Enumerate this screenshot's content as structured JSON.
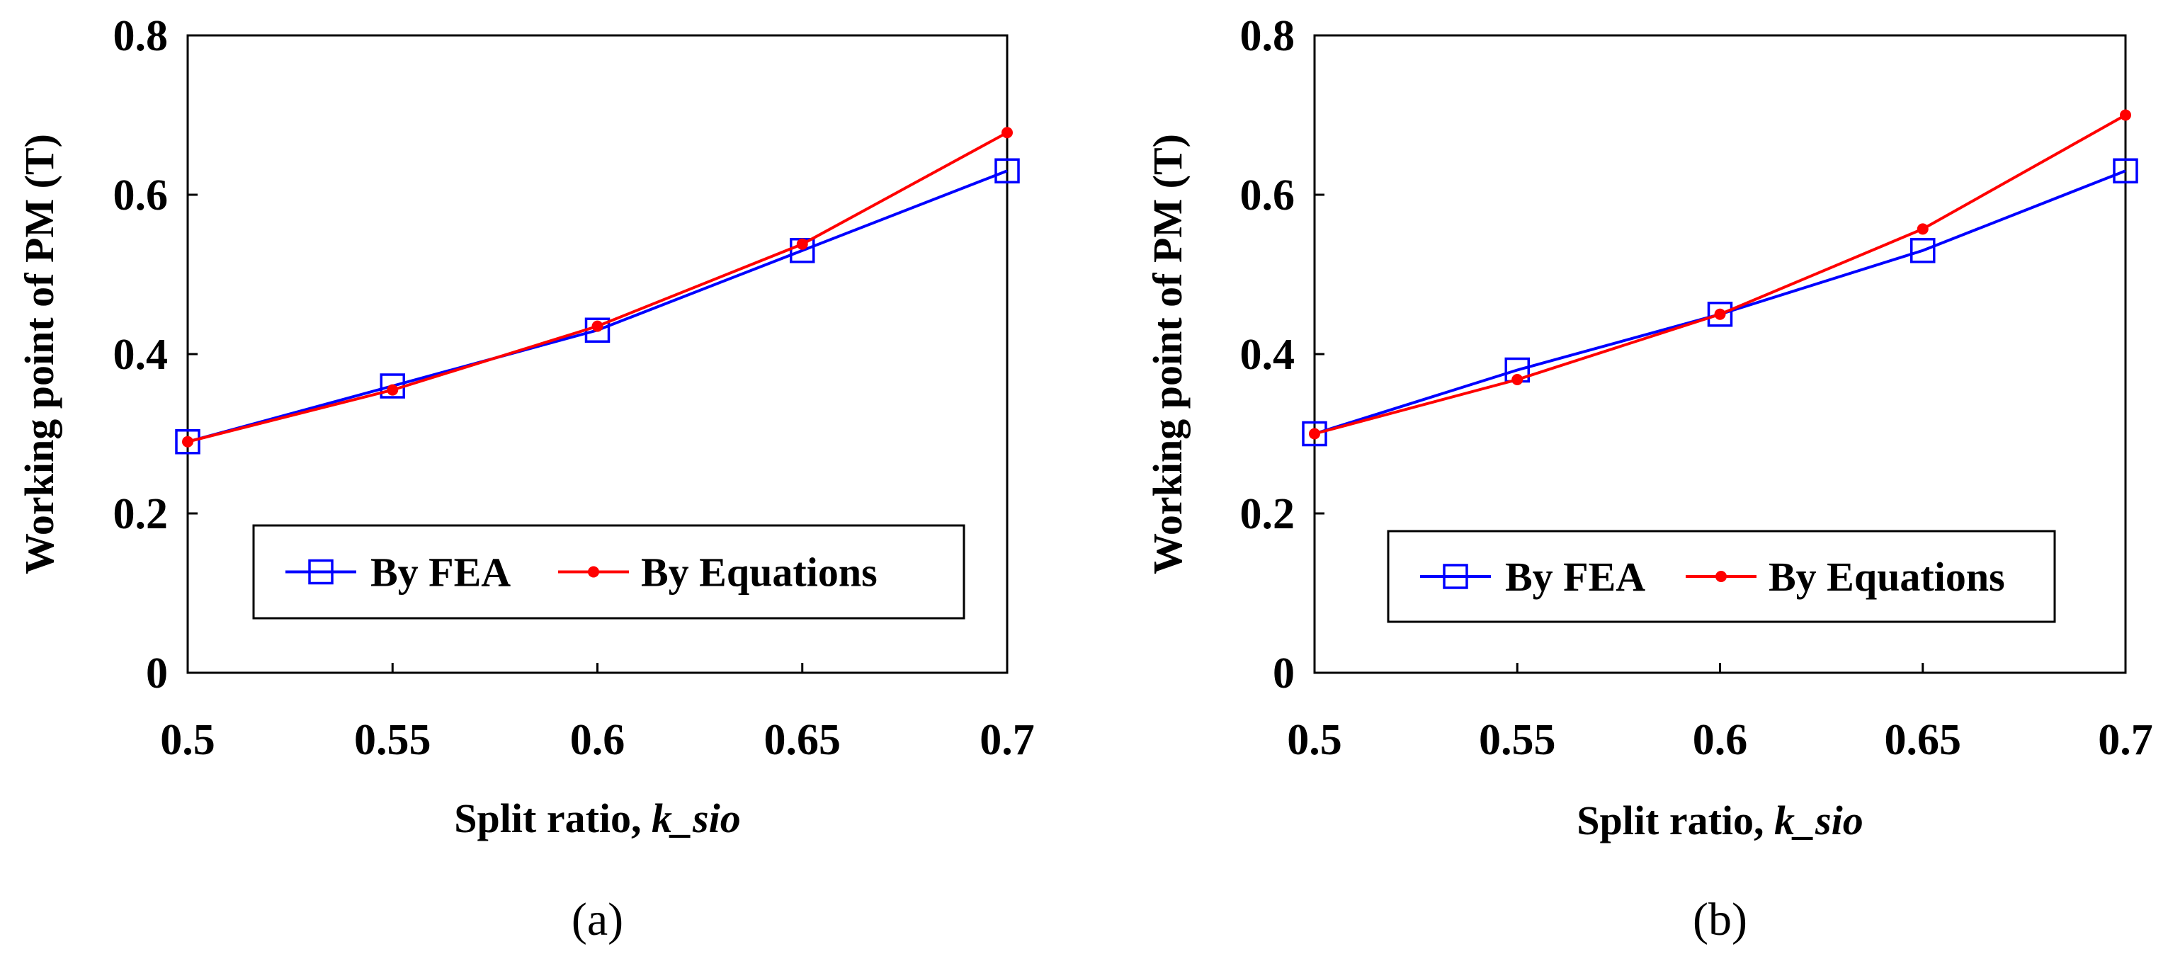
{
  "chart_data": [
    {
      "type": "line",
      "panel_label": "(a)",
      "xlabel_prefix": "Split ratio, ",
      "xlabel_italic": "k_sio",
      "ylabel": "Working point of PM (T)",
      "x": [
        0.5,
        0.55,
        0.6,
        0.65,
        0.7
      ],
      "xticks": [
        "0.5",
        "0.55",
        "0.6",
        "0.65",
        "0.7"
      ],
      "yticks": [
        "0",
        "0.2",
        "0.4",
        "0.6",
        "0.8"
      ],
      "xlim": [
        0.5,
        0.7
      ],
      "ylim": [
        0,
        0.8
      ],
      "legend_position": "lower-right",
      "series": [
        {
          "name": "By FEA",
          "color": "#0000ff",
          "marker": "open-square",
          "values": [
            0.29,
            0.36,
            0.43,
            0.53,
            0.63
          ]
        },
        {
          "name": "By Equations",
          "color": "#ff0000",
          "marker": "filled-circle",
          "values": [
            0.29,
            0.355,
            0.435,
            0.538,
            0.678
          ]
        }
      ]
    },
    {
      "type": "line",
      "panel_label": "(b)",
      "xlabel_prefix": "Split ratio, ",
      "xlabel_italic": "k_sio",
      "ylabel": "Working point of PM (T)",
      "x": [
        0.5,
        0.55,
        0.6,
        0.65,
        0.7
      ],
      "xticks": [
        "0.5",
        "0.55",
        "0.6",
        "0.65",
        "0.7"
      ],
      "yticks": [
        "0",
        "0.2",
        "0.4",
        "0.6",
        "0.8"
      ],
      "xlim": [
        0.5,
        0.7
      ],
      "ylim": [
        0,
        0.8
      ],
      "legend_position": "lower-right",
      "series": [
        {
          "name": "By FEA",
          "color": "#0000ff",
          "marker": "open-square",
          "values": [
            0.3,
            0.38,
            0.45,
            0.53,
            0.63
          ]
        },
        {
          "name": "By Equations",
          "color": "#ff0000",
          "marker": "filled-circle",
          "values": [
            0.3,
            0.368,
            0.45,
            0.557,
            0.7
          ]
        }
      ]
    }
  ]
}
